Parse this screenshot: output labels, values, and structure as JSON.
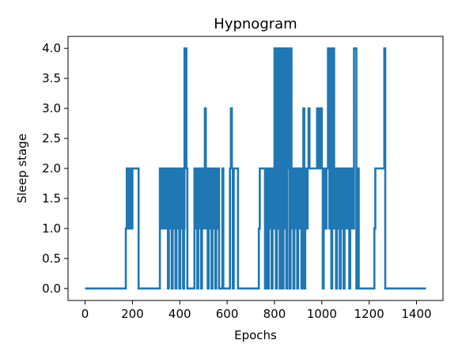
{
  "chart_data": {
    "type": "line",
    "title": "Hypnogram",
    "xlabel": "Epochs",
    "ylabel": "Sleep stage",
    "xlim": [
      -72,
      1512
    ],
    "ylim": [
      -0.2,
      4.2
    ],
    "x_ticks": [
      0,
      200,
      400,
      600,
      800,
      1000,
      1200,
      1400
    ],
    "x_tick_labels": [
      "0",
      "200",
      "400",
      "600",
      "800",
      "1000",
      "1200",
      "1400"
    ],
    "y_ticks": [
      0,
      0.5,
      1,
      1.5,
      2,
      2.5,
      3,
      3.5,
      4
    ],
    "y_tick_labels": [
      "0.0",
      "0.5",
      "1.0",
      "1.5",
      "2.0",
      "2.5",
      "3.0",
      "3.5",
      "4.0"
    ],
    "grid": false,
    "legend": false,
    "series": [
      {
        "color": "#1f77b4",
        "points": [
          [
            0,
            0
          ],
          [
            172,
            0
          ],
          [
            172,
            1
          ],
          [
            176,
            1
          ],
          [
            176,
            2
          ],
          [
            180,
            2
          ],
          [
            180,
            1
          ],
          [
            184,
            1
          ],
          [
            184,
            2
          ],
          [
            188,
            2
          ],
          [
            188,
            1
          ],
          [
            192,
            1
          ],
          [
            192,
            2
          ],
          [
            196,
            2
          ],
          [
            196,
            1
          ],
          [
            200,
            1
          ],
          [
            200,
            2
          ],
          [
            226,
            2
          ],
          [
            226,
            0
          ],
          [
            316,
            0
          ],
          [
            316,
            2
          ],
          [
            322,
            2
          ],
          [
            322,
            1
          ],
          [
            326,
            1
          ],
          [
            326,
            2
          ],
          [
            332,
            2
          ],
          [
            332,
            1
          ],
          [
            336,
            1
          ],
          [
            336,
            2
          ],
          [
            342,
            2
          ],
          [
            342,
            1
          ],
          [
            346,
            1
          ],
          [
            346,
            2
          ],
          [
            350,
            2
          ],
          [
            350,
            0
          ],
          [
            354,
            0
          ],
          [
            354,
            2
          ],
          [
            358,
            2
          ],
          [
            358,
            1
          ],
          [
            362,
            1
          ],
          [
            362,
            2
          ],
          [
            366,
            2
          ],
          [
            366,
            0
          ],
          [
            370,
            0
          ],
          [
            370,
            2
          ],
          [
            374,
            2
          ],
          [
            374,
            1
          ],
          [
            378,
            1
          ],
          [
            378,
            2
          ],
          [
            382,
            2
          ],
          [
            382,
            0
          ],
          [
            386,
            0
          ],
          [
            386,
            2
          ],
          [
            390,
            2
          ],
          [
            390,
            1
          ],
          [
            394,
            1
          ],
          [
            394,
            2
          ],
          [
            398,
            2
          ],
          [
            398,
            0
          ],
          [
            402,
            0
          ],
          [
            402,
            2
          ],
          [
            406,
            2
          ],
          [
            406,
            1
          ],
          [
            410,
            1
          ],
          [
            410,
            2
          ],
          [
            414,
            2
          ],
          [
            414,
            0
          ],
          [
            418,
            0
          ],
          [
            418,
            1
          ],
          [
            420,
            1
          ],
          [
            420,
            4
          ],
          [
            428,
            4
          ],
          [
            428,
            2
          ],
          [
            432,
            2
          ],
          [
            432,
            0
          ],
          [
            462,
            0
          ],
          [
            462,
            2
          ],
          [
            466,
            2
          ],
          [
            466,
            1
          ],
          [
            470,
            1
          ],
          [
            470,
            2
          ],
          [
            474,
            2
          ],
          [
            474,
            0
          ],
          [
            478,
            0
          ],
          [
            478,
            2
          ],
          [
            482,
            2
          ],
          [
            482,
            1
          ],
          [
            486,
            1
          ],
          [
            486,
            2
          ],
          [
            490,
            2
          ],
          [
            490,
            0
          ],
          [
            494,
            0
          ],
          [
            494,
            2
          ],
          [
            498,
            2
          ],
          [
            498,
            1
          ],
          [
            502,
            1
          ],
          [
            502,
            2
          ],
          [
            506,
            2
          ],
          [
            506,
            3
          ],
          [
            510,
            3
          ],
          [
            510,
            1
          ],
          [
            514,
            1
          ],
          [
            514,
            2
          ],
          [
            518,
            2
          ],
          [
            518,
            0
          ],
          [
            522,
            0
          ],
          [
            522,
            2
          ],
          [
            526,
            2
          ],
          [
            526,
            1
          ],
          [
            530,
            1
          ],
          [
            530,
            2
          ],
          [
            534,
            2
          ],
          [
            534,
            0
          ],
          [
            538,
            0
          ],
          [
            538,
            2
          ],
          [
            542,
            2
          ],
          [
            542,
            1
          ],
          [
            546,
            1
          ],
          [
            546,
            2
          ],
          [
            550,
            2
          ],
          [
            550,
            0
          ],
          [
            554,
            0
          ],
          [
            554,
            2
          ],
          [
            558,
            2
          ],
          [
            558,
            1
          ],
          [
            562,
            1
          ],
          [
            562,
            2
          ],
          [
            566,
            2
          ],
          [
            566,
            0
          ],
          [
            580,
            0
          ],
          [
            580,
            2
          ],
          [
            584,
            2
          ],
          [
            584,
            0
          ],
          [
            612,
            0
          ],
          [
            612,
            2
          ],
          [
            616,
            2
          ],
          [
            616,
            3
          ],
          [
            620,
            3
          ],
          [
            620,
            2
          ],
          [
            624,
            2
          ],
          [
            624,
            0
          ],
          [
            628,
            0
          ],
          [
            628,
            2
          ],
          [
            646,
            2
          ],
          [
            646,
            0
          ],
          [
            734,
            0
          ],
          [
            734,
            1
          ],
          [
            738,
            1
          ],
          [
            738,
            2
          ],
          [
            760,
            2
          ],
          [
            760,
            0
          ],
          [
            768,
            0
          ],
          [
            768,
            2
          ],
          [
            772,
            2
          ],
          [
            772,
            0
          ],
          [
            776,
            0
          ],
          [
            776,
            2
          ],
          [
            780,
            2
          ],
          [
            780,
            1
          ],
          [
            784,
            1
          ],
          [
            784,
            2
          ],
          [
            788,
            2
          ],
          [
            788,
            0
          ],
          [
            792,
            0
          ],
          [
            792,
            2
          ],
          [
            796,
            2
          ],
          [
            796,
            1
          ],
          [
            800,
            1
          ],
          [
            800,
            4
          ],
          [
            806,
            4
          ],
          [
            806,
            0
          ],
          [
            810,
            0
          ],
          [
            810,
            4
          ],
          [
            814,
            4
          ],
          [
            814,
            1
          ],
          [
            818,
            1
          ],
          [
            818,
            4
          ],
          [
            822,
            4
          ],
          [
            822,
            0
          ],
          [
            826,
            0
          ],
          [
            826,
            4
          ],
          [
            830,
            4
          ],
          [
            830,
            2
          ],
          [
            834,
            2
          ],
          [
            834,
            0
          ],
          [
            838,
            0
          ],
          [
            838,
            4
          ],
          [
            842,
            4
          ],
          [
            842,
            1
          ],
          [
            846,
            1
          ],
          [
            846,
            4
          ],
          [
            850,
            4
          ],
          [
            850,
            0
          ],
          [
            854,
            0
          ],
          [
            854,
            4
          ],
          [
            860,
            4
          ],
          [
            860,
            2
          ],
          [
            864,
            2
          ],
          [
            864,
            0
          ],
          [
            868,
            0
          ],
          [
            868,
            4
          ],
          [
            872,
            4
          ],
          [
            872,
            1
          ],
          [
            876,
            1
          ],
          [
            876,
            2
          ],
          [
            880,
            2
          ],
          [
            880,
            0
          ],
          [
            884,
            0
          ],
          [
            884,
            2
          ],
          [
            888,
            2
          ],
          [
            888,
            1
          ],
          [
            892,
            1
          ],
          [
            892,
            2
          ],
          [
            896,
            2
          ],
          [
            896,
            0
          ],
          [
            900,
            0
          ],
          [
            900,
            2
          ],
          [
            904,
            2
          ],
          [
            904,
            1
          ],
          [
            908,
            1
          ],
          [
            908,
            2
          ],
          [
            914,
            2
          ],
          [
            914,
            0
          ],
          [
            918,
            0
          ],
          [
            918,
            2
          ],
          [
            922,
            2
          ],
          [
            922,
            3
          ],
          [
            926,
            3
          ],
          [
            926,
            0
          ],
          [
            930,
            0
          ],
          [
            930,
            2
          ],
          [
            936,
            2
          ],
          [
            936,
            1
          ],
          [
            940,
            1
          ],
          [
            940,
            2
          ],
          [
            944,
            2
          ],
          [
            944,
            3
          ],
          [
            948,
            3
          ],
          [
            948,
            2
          ],
          [
            980,
            2
          ],
          [
            980,
            3
          ],
          [
            984,
            3
          ],
          [
            984,
            2
          ],
          [
            988,
            2
          ],
          [
            988,
            3
          ],
          [
            992,
            3
          ],
          [
            992,
            2
          ],
          [
            996,
            2
          ],
          [
            996,
            3
          ],
          [
            1000,
            3
          ],
          [
            1000,
            2
          ],
          [
            1004,
            2
          ],
          [
            1004,
            0
          ],
          [
            1008,
            0
          ],
          [
            1008,
            2
          ],
          [
            1016,
            2
          ],
          [
            1016,
            1
          ],
          [
            1020,
            1
          ],
          [
            1020,
            2
          ],
          [
            1026,
            2
          ],
          [
            1026,
            4
          ],
          [
            1032,
            4
          ],
          [
            1032,
            1
          ],
          [
            1036,
            1
          ],
          [
            1036,
            4
          ],
          [
            1040,
            4
          ],
          [
            1040,
            0
          ],
          [
            1044,
            0
          ],
          [
            1044,
            2
          ],
          [
            1048,
            2
          ],
          [
            1048,
            4
          ],
          [
            1052,
            4
          ],
          [
            1052,
            1
          ],
          [
            1056,
            1
          ],
          [
            1056,
            2
          ],
          [
            1060,
            2
          ],
          [
            1060,
            0
          ],
          [
            1064,
            0
          ],
          [
            1064,
            2
          ],
          [
            1068,
            2
          ],
          [
            1068,
            1
          ],
          [
            1072,
            1
          ],
          [
            1072,
            2
          ],
          [
            1076,
            2
          ],
          [
            1076,
            0
          ],
          [
            1080,
            0
          ],
          [
            1080,
            2
          ],
          [
            1084,
            2
          ],
          [
            1084,
            1
          ],
          [
            1088,
            1
          ],
          [
            1088,
            2
          ],
          [
            1092,
            2
          ],
          [
            1092,
            0
          ],
          [
            1096,
            0
          ],
          [
            1096,
            2
          ],
          [
            1100,
            2
          ],
          [
            1100,
            1
          ],
          [
            1104,
            1
          ],
          [
            1104,
            2
          ],
          [
            1108,
            2
          ],
          [
            1108,
            1
          ],
          [
            1112,
            1
          ],
          [
            1112,
            2
          ],
          [
            1116,
            2
          ],
          [
            1116,
            0
          ],
          [
            1120,
            0
          ],
          [
            1120,
            2
          ],
          [
            1124,
            2
          ],
          [
            1124,
            1
          ],
          [
            1128,
            1
          ],
          [
            1128,
            2
          ],
          [
            1132,
            2
          ],
          [
            1132,
            1
          ],
          [
            1136,
            1
          ],
          [
            1136,
            4
          ],
          [
            1146,
            4
          ],
          [
            1146,
            0
          ],
          [
            1150,
            0
          ],
          [
            1150,
            2
          ],
          [
            1156,
            2
          ],
          [
            1156,
            0
          ],
          [
            1222,
            0
          ],
          [
            1222,
            1
          ],
          [
            1226,
            1
          ],
          [
            1226,
            2
          ],
          [
            1264,
            2
          ],
          [
            1264,
            4
          ],
          [
            1268,
            4
          ],
          [
            1268,
            0
          ],
          [
            1440,
            0
          ]
        ]
      }
    ]
  }
}
